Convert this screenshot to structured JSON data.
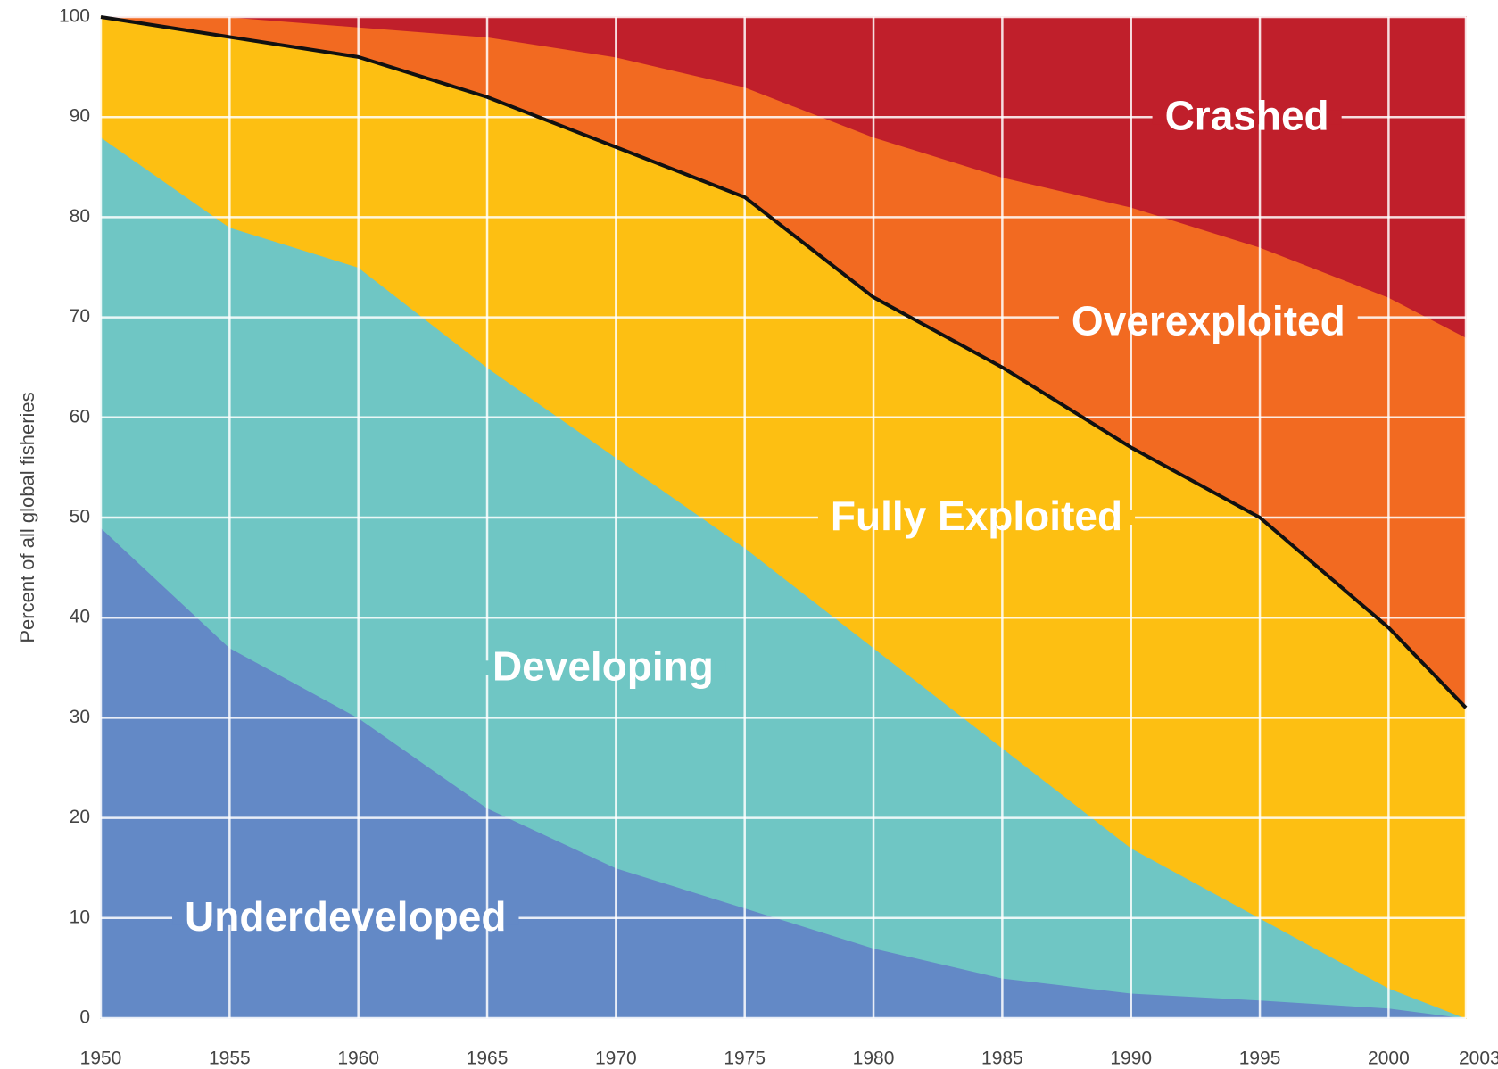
{
  "chart_data": {
    "type": "stacked_area",
    "ylabel": "Percent of all global fisheries",
    "x": [
      1950,
      1955,
      1960,
      1965,
      1970,
      1975,
      1980,
      1985,
      1990,
      1995,
      2000,
      2003
    ],
    "series": [
      {
        "name": "Underdeveloped",
        "color": "#6389c6",
        "values": [
          49,
          37,
          30,
          21,
          15,
          11,
          7,
          4,
          2.5,
          1.8,
          1,
          0
        ]
      },
      {
        "name": "Developing",
        "color": "#6fc6c4",
        "values": [
          39,
          42,
          45,
          44,
          41,
          36,
          30,
          23,
          14.5,
          8.2,
          2,
          0
        ]
      },
      {
        "name": "Fully Exploited",
        "color": "#fdbf12",
        "values": [
          12,
          19,
          21,
          27,
          31,
          35,
          35,
          38,
          40,
          40,
          36,
          31
        ]
      },
      {
        "name": "Overexploited",
        "color": "#f26a21",
        "values": [
          0,
          2,
          3,
          6,
          9,
          11,
          16,
          19,
          24,
          27,
          33,
          37
        ]
      },
      {
        "name": "Crashed",
        "color": "#c01f2b",
        "values": [
          0,
          0,
          1,
          2,
          4,
          7,
          12,
          16,
          19,
          23,
          28,
          32
        ]
      }
    ],
    "xlim": [
      1950,
      2003
    ],
    "xticks": [
      1950,
      1955,
      1960,
      1965,
      1970,
      1975,
      1980,
      1985,
      1990,
      1995,
      2000,
      2003
    ],
    "ylim": [
      0,
      100
    ],
    "yticks": [
      0,
      10,
      20,
      30,
      40,
      50,
      60,
      70,
      80,
      90,
      100
    ],
    "grid": true
  }
}
